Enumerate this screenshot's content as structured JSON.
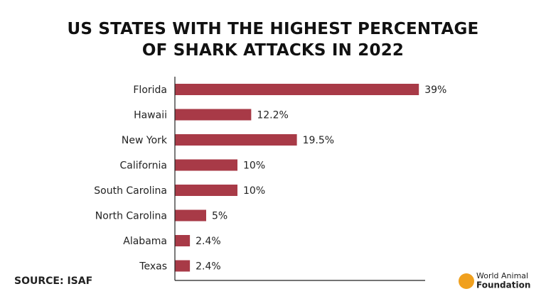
{
  "chart_data": {
    "type": "bar",
    "orientation": "horizontal",
    "title": "US STATES WITH THE HIGHEST PERCENTAGE OF SHARK ATTACKS IN 2022",
    "categories": [
      "Florida",
      "Hawaii",
      "New York",
      "California",
      "South Carolina",
      "North Carolina",
      "Alabama",
      "Texas"
    ],
    "values": [
      39,
      12.2,
      19.5,
      10,
      10,
      5,
      2.4,
      2.4
    ],
    "value_labels": [
      "39%",
      "12.2%",
      "19.5%",
      "10%",
      "10%",
      "5%",
      "2.4%",
      "2.4%"
    ],
    "color": "#a83a47",
    "xlim": [
      0,
      40
    ]
  },
  "source": "SOURCE: ISAF",
  "logo": {
    "line1": "World Animal",
    "line2": "Foundation"
  }
}
